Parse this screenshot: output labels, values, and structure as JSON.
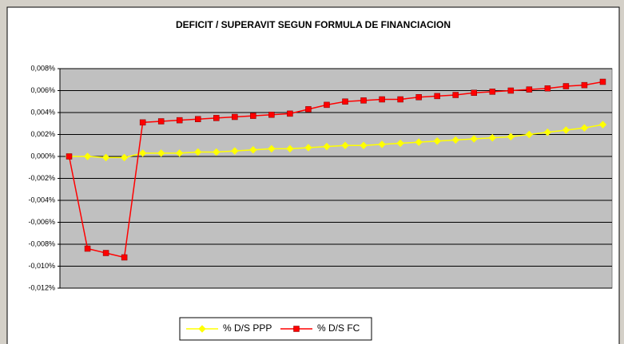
{
  "chart_data": {
    "type": "line",
    "title": "DEFICIT / SUPERAVIT SEGUN FORMULA DE FINANCIACION",
    "series": [
      {
        "name": "% D/S PPP",
        "color": "#ffff00",
        "marker": "diamond",
        "values": [
          0,
          0,
          -0.0001,
          -0.0001,
          0.0003,
          0.0003,
          0.0003,
          0.0004,
          0.0004,
          0.0005,
          0.0006,
          0.0007,
          0.0007,
          0.0008,
          0.0009,
          0.001,
          0.001,
          0.0011,
          0.0012,
          0.0013,
          0.0014,
          0.0015,
          0.0016,
          0.0017,
          0.0018,
          0.002,
          0.0022,
          0.0024,
          0.0026,
          0.0029
        ]
      },
      {
        "name": "% D/S FC",
        "color": "#ff0000",
        "marker": "square",
        "values": [
          0,
          -0.0084,
          -0.0088,
          -0.0092,
          0.0031,
          0.0032,
          0.0033,
          0.0034,
          0.0035,
          0.0036,
          0.0037,
          0.0038,
          0.0039,
          0.0043,
          0.0047,
          0.005,
          0.0051,
          0.0052,
          0.0052,
          0.0054,
          0.0055,
          0.0056,
          0.0058,
          0.0059,
          0.006,
          0.0061,
          0.0062,
          0.0064,
          0.0065,
          0.0068
        ]
      }
    ],
    "ylim": [
      -0.012,
      0.008
    ],
    "yticks": [
      {
        "value": -0.012,
        "label": "-0,012%"
      },
      {
        "value": -0.01,
        "label": "-0,010%"
      },
      {
        "value": -0.008,
        "label": "-0,008%"
      },
      {
        "value": -0.006,
        "label": "-0,006%"
      },
      {
        "value": -0.004,
        "label": "-0,004%"
      },
      {
        "value": -0.002,
        "label": "-0,002%"
      },
      {
        "value": 0,
        "label": "0,000%"
      },
      {
        "value": 0.002,
        "label": "0,002%"
      },
      {
        "value": 0.004,
        "label": "0,004%"
      },
      {
        "value": 0.006,
        "label": "0,006%"
      },
      {
        "value": 0.008,
        "label": "0,008%"
      }
    ],
    "grid": true,
    "plot_background": "#c0c0c0",
    "legend": "bottom"
  }
}
